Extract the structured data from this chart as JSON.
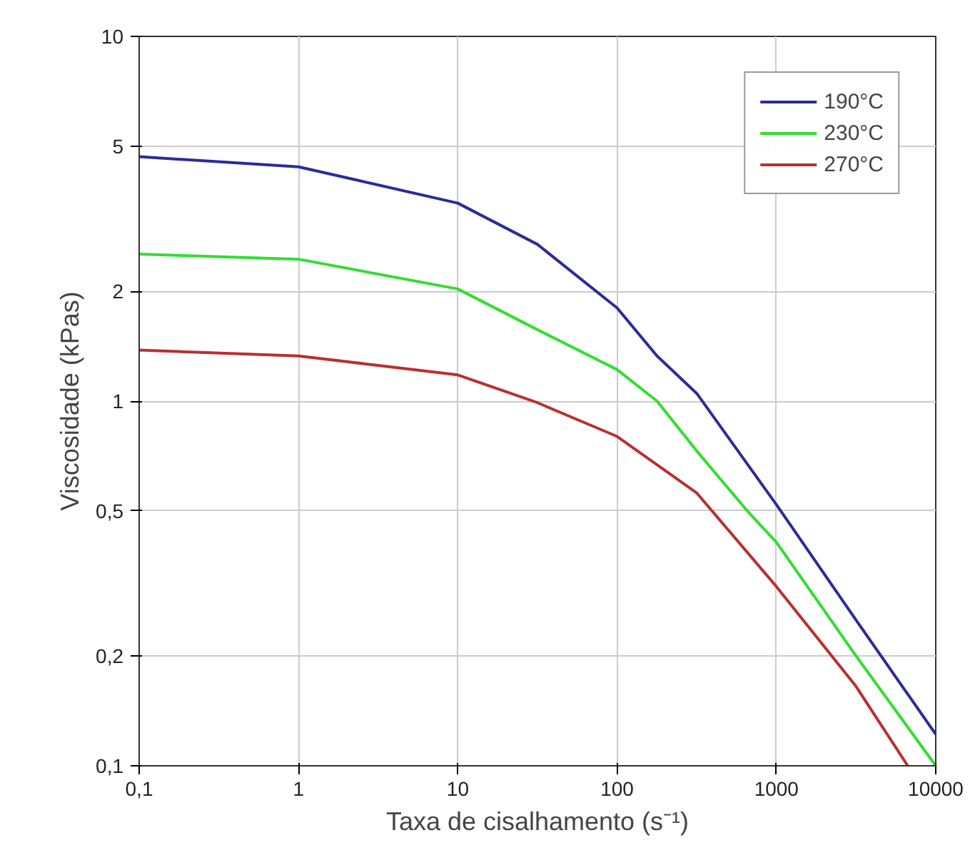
{
  "chart_data": {
    "type": "line",
    "xlabel": "Taxa de cisalhamento (s⁻¹)",
    "ylabel": "Viscosidade (kPas)",
    "log": "xy",
    "grid": true,
    "legend": "top right",
    "marker": "none",
    "line_style": "solid",
    "xlim": [
      0.1,
      10000
    ],
    "ylim": [
      0.1,
      10
    ],
    "xticks": [
      {
        "value": 0.1,
        "label": "0,1"
      },
      1,
      10,
      100,
      1000,
      10000
    ],
    "yticks": [
      {
        "value": 0.1,
        "label": "0,1"
      },
      {
        "value": 0.2,
        "label": "0,2"
      },
      {
        "value": 0.5,
        "label": "0,5"
      },
      1,
      2,
      5,
      10
    ],
    "series": [
      {
        "name": "190°C",
        "color": "#2b2b9a",
        "x": [
          0.1,
          1,
          10,
          31.6,
          100,
          178,
          316,
          1000,
          3162,
          10000
        ],
        "values": [
          4.68,
          4.39,
          3.49,
          2.69,
          1.8,
          1.33,
          1.05,
          0.52,
          0.251,
          0.122
        ]
      },
      {
        "name": "230°C",
        "color": "#33dd33",
        "x": [
          0.1,
          1,
          10,
          31.6,
          100,
          178,
          316,
          656,
          1000,
          3162,
          10000
        ],
        "values": [
          2.53,
          2.45,
          2.03,
          1.57,
          1.22,
          1.0,
          0.73,
          0.5,
          0.41,
          0.2,
          0.1
        ]
      },
      {
        "name": "270°C",
        "color": "#b83030",
        "x": [
          0.1,
          1,
          10,
          31.6,
          100,
          316,
          1000,
          3162,
          6670
        ],
        "values": [
          1.38,
          1.33,
          1.18,
          0.99,
          0.8,
          0.56,
          0.31,
          0.165,
          0.1
        ]
      }
    ]
  }
}
